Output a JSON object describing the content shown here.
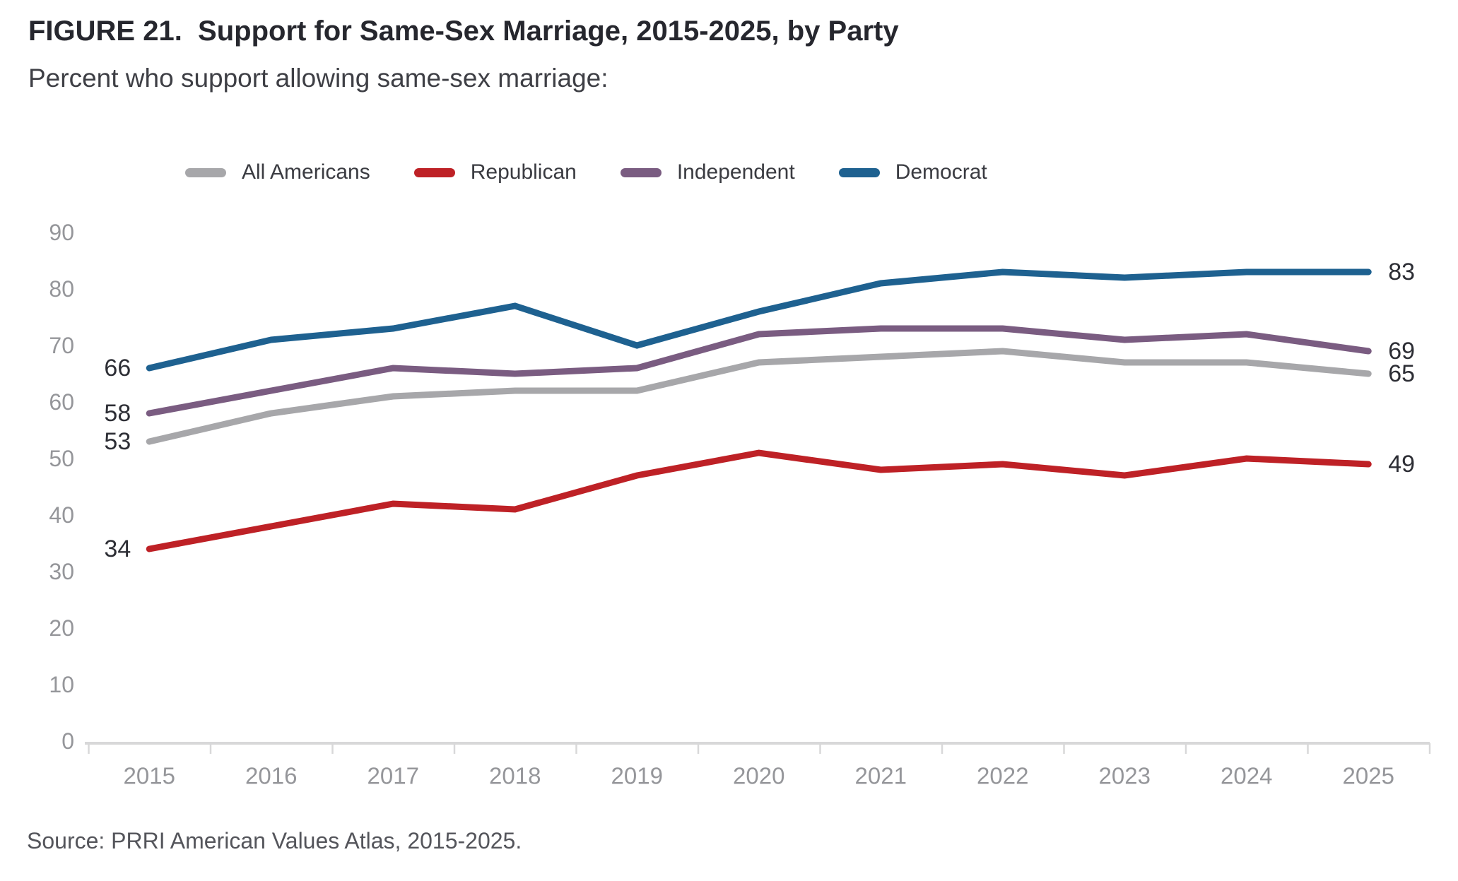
{
  "title": "FIGURE 21.  Support for Same-Sex Marriage, 2015-2025, by Party",
  "subtitle": "Percent who support allowing same-sex marriage:",
  "source": "Source: PRRI American Values Atlas, 2015-2025.",
  "colors": {
    "all_americans": "#A7A7AA",
    "republican": "#BE2126",
    "independent": "#7A5C81",
    "democrat": "#1E6190",
    "axis_text": "#95969A",
    "axis_line": "#D8D8D9",
    "edge_label_text": "#2D2E35"
  },
  "chart_data": {
    "type": "line",
    "x": [
      2015,
      2016,
      2017,
      2018,
      2019,
      2020,
      2021,
      2022,
      2023,
      2024,
      2025
    ],
    "series": [
      {
        "name": "All Americans",
        "slug": "all-americans",
        "color": "#A7A7AA",
        "values": [
          53,
          58,
          61,
          62,
          62,
          67,
          68,
          69,
          67,
          67,
          65
        ],
        "start_label": "53",
        "end_label": "65"
      },
      {
        "name": "Republican",
        "slug": "republican",
        "color": "#BE2126",
        "values": [
          34,
          38,
          42,
          41,
          47,
          51,
          48,
          49,
          47,
          50,
          49
        ],
        "start_label": "34",
        "end_label": "49"
      },
      {
        "name": "Independent",
        "slug": "independent",
        "color": "#7A5C81",
        "values": [
          58,
          62,
          66,
          65,
          66,
          72,
          73,
          73,
          71,
          72,
          69
        ],
        "start_label": "58",
        "end_label": "69"
      },
      {
        "name": "Democrat",
        "slug": "democrat",
        "color": "#1E6190",
        "values": [
          66,
          71,
          73,
          77,
          70,
          76,
          81,
          83,
          82,
          83,
          83
        ],
        "start_label": "66",
        "end_label": "83"
      }
    ],
    "ylim": [
      0,
      90
    ],
    "y_ticks": [
      0,
      10,
      20,
      30,
      40,
      50,
      60,
      70,
      80,
      90
    ],
    "grid": false,
    "legend_position": "top"
  }
}
